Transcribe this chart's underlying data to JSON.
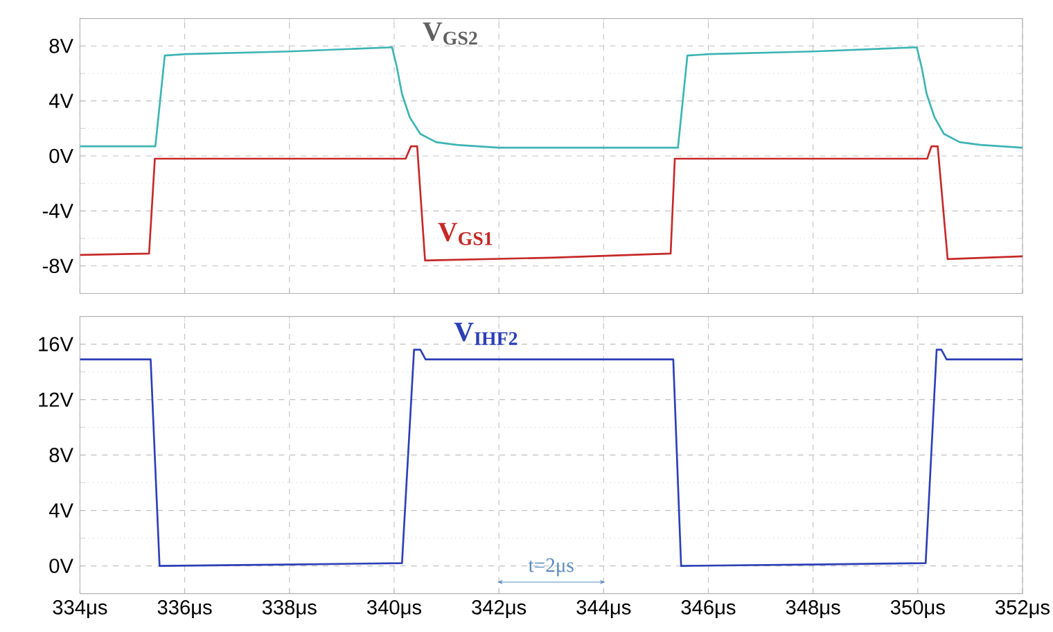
{
  "chart_data": [
    {
      "type": "line",
      "xlim": [
        334,
        352
      ],
      "ylim": [
        -10,
        10
      ],
      "grid": true,
      "tick_labels": "y",
      "xticks": [
        334,
        336,
        338,
        340,
        342,
        344,
        346,
        348,
        350,
        352
      ],
      "yticks": [
        {
          "value": -8,
          "label": "-8V"
        },
        {
          "value": -4,
          "label": "-4V"
        },
        {
          "value": 0,
          "label": "0V"
        },
        {
          "value": 4,
          "label": "4V"
        },
        {
          "value": 8,
          "label": "8V"
        }
      ],
      "series": [
        {
          "name": "V$_{GS2}$",
          "color": "#3cb4b4",
          "x": [
            334,
            335.44,
            335.62,
            336,
            338,
            339.96,
            340.05,
            340.15,
            340.3,
            340.5,
            340.8,
            341.2,
            342,
            345.42,
            345.6,
            346,
            348,
            349.98,
            350.07,
            350.17,
            350.32,
            350.5,
            350.8,
            351.2,
            352
          ],
          "values": [
            0.7,
            0.7,
            7.3,
            7.4,
            7.6,
            7.9,
            6.5,
            4.5,
            2.8,
            1.6,
            1.0,
            0.8,
            0.6,
            0.6,
            7.3,
            7.4,
            7.6,
            7.9,
            6.5,
            4.5,
            2.8,
            1.6,
            1.0,
            0.8,
            0.6
          ]
        },
        {
          "name": "V$_{GS1}$",
          "color": "#c62828",
          "x": [
            334,
            335.32,
            335.43,
            338,
            340.22,
            340.32,
            340.44,
            340.59,
            343,
            345.28,
            345.36,
            348,
            350.18,
            350.26,
            350.38,
            350.57,
            352
          ],
          "values": [
            -7.2,
            -7.1,
            -0.2,
            -0.2,
            -0.2,
            0.7,
            0.7,
            -7.6,
            -7.4,
            -7.1,
            -0.2,
            -0.2,
            -0.2,
            0.7,
            0.7,
            -7.5,
            -7.3
          ]
        }
      ]
    },
    {
      "type": "line",
      "xlim": [
        334,
        352
      ],
      "ylim": [
        -2,
        18
      ],
      "grid": true,
      "xticks": [
        {
          "value": 334,
          "label": "334μs"
        },
        {
          "value": 336,
          "label": "336μs"
        },
        {
          "value": 338,
          "label": "338μs"
        },
        {
          "value": 340,
          "label": "340μs"
        },
        {
          "value": 342,
          "label": "342μs"
        },
        {
          "value": 344,
          "label": "344μs"
        },
        {
          "value": 346,
          "label": "346μs"
        },
        {
          "value": 348,
          "label": "348μs"
        },
        {
          "value": 350,
          "label": "350μs"
        },
        {
          "value": 352,
          "label": "352μs"
        }
      ],
      "yticks": [
        {
          "value": 0,
          "label": "0V"
        },
        {
          "value": 4,
          "label": "4V"
        },
        {
          "value": 8,
          "label": "8V"
        },
        {
          "value": 12,
          "label": "12V"
        },
        {
          "value": 16,
          "label": "16V"
        }
      ],
      "annotations": [
        "t=2μs"
      ],
      "series": [
        {
          "name": "V$_{IHF2}$",
          "color": "#2b3fb5",
          "x": [
            334,
            335.35,
            335.52,
            338,
            340.15,
            340.38,
            340.5,
            340.6,
            345.33,
            345.48,
            348,
            350.15,
            350.36,
            350.45,
            350.55,
            352
          ],
          "values": [
            14.9,
            14.9,
            0,
            0.1,
            0.2,
            15.6,
            15.6,
            14.9,
            14.9,
            0,
            0.1,
            0.2,
            15.6,
            15.6,
            14.9,
            14.9
          ]
        }
      ]
    }
  ]
}
